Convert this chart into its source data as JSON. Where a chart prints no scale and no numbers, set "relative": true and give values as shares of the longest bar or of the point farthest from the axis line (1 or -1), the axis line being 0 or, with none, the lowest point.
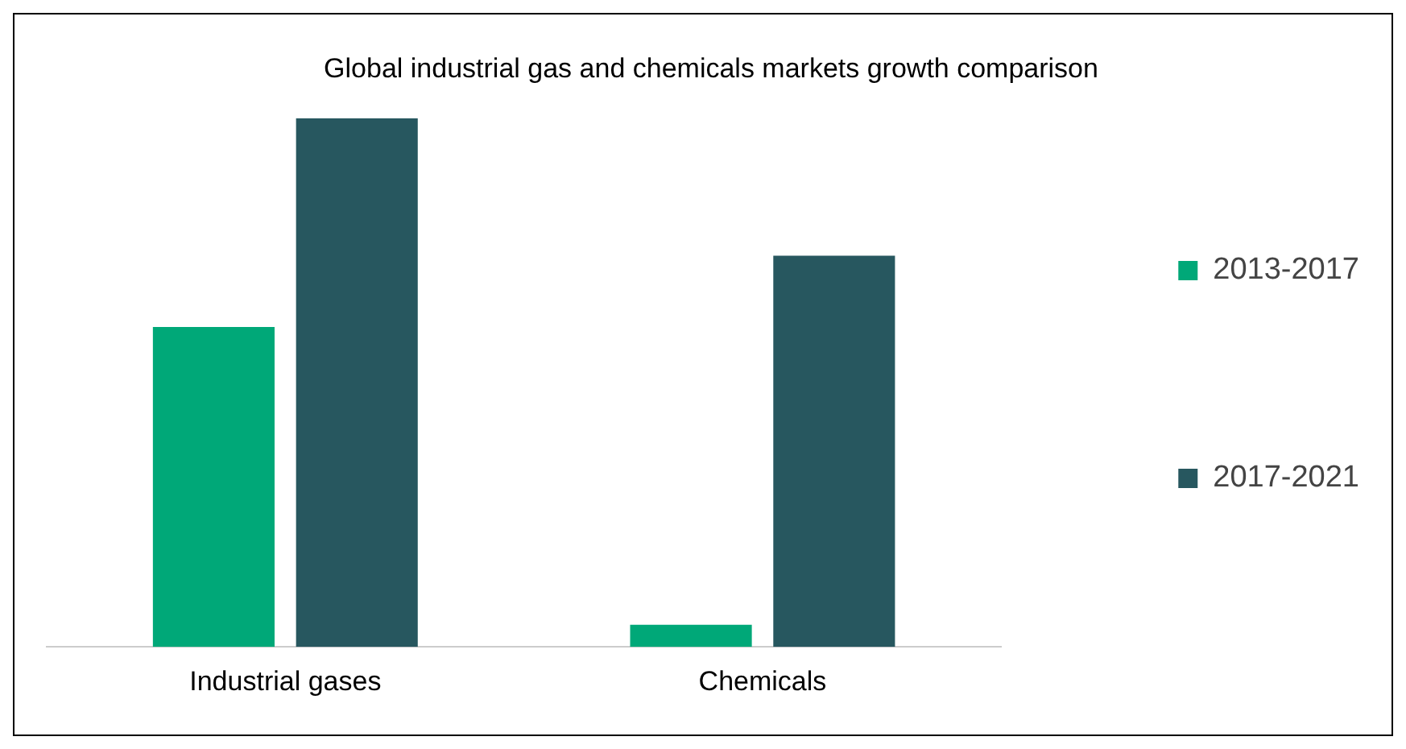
{
  "chart_data": {
    "type": "bar",
    "title": "Global industrial gas and chemicals markets growth comparison",
    "categories": [
      "Industrial gases",
      "Chemicals"
    ],
    "relative": true,
    "legend": "right",
    "grid": false,
    "series": [
      {
        "name": "2013-2017",
        "color": "#00a878",
        "values": [
          0.605,
          0.042
        ]
      },
      {
        "name": "2017-2021",
        "color": "#27575f",
        "values": [
          1,
          0.74
        ]
      }
    ]
  }
}
